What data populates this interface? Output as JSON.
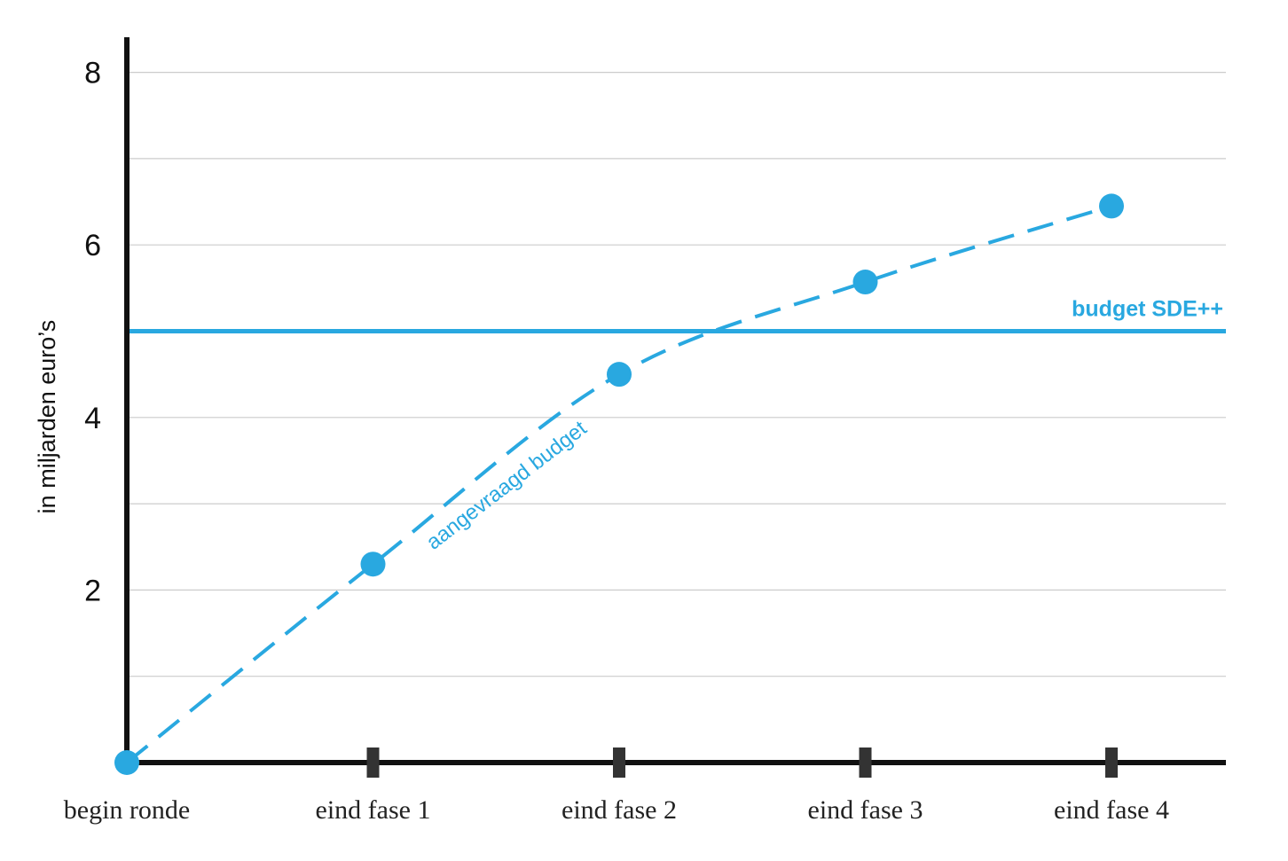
{
  "chart_data": {
    "type": "line",
    "ylabel": "in miljarden euro’s",
    "xlabel": "",
    "categories": [
      "begin ronde",
      "eind fase 1",
      "eind fase 2",
      "eind fase 3",
      "eind fase 4"
    ],
    "y_ticks": [
      "2",
      "4",
      "6",
      "8"
    ],
    "ylim": [
      0,
      8.4
    ],
    "grid": true,
    "series": [
      {
        "name": "aangevraagd budget",
        "values": [
          0,
          2.3,
          4.5,
          5.57,
          6.45
        ],
        "color": "#29a8e0",
        "style": "dashed"
      }
    ],
    "reference_line": {
      "name": "budget SDE++",
      "value": 5.0,
      "color": "#29a8e0"
    }
  }
}
